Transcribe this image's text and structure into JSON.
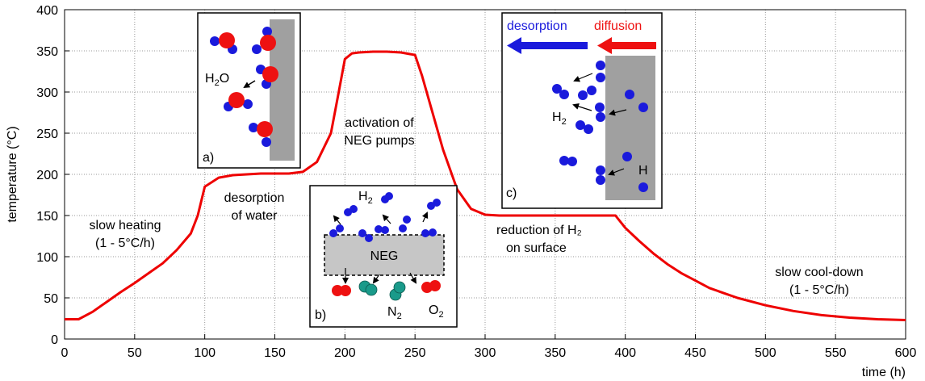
{
  "chart_data": {
    "type": "line",
    "xlabel": "time (h)",
    "ylabel": "temperature (°C)",
    "xlim": [
      0,
      600
    ],
    "ylim": [
      0,
      400
    ],
    "xticks": [
      0,
      50,
      100,
      150,
      200,
      250,
      300,
      350,
      400,
      450,
      500,
      550,
      600
    ],
    "yticks": [
      0,
      50,
      100,
      150,
      200,
      250,
      300,
      350,
      400
    ],
    "grid": true,
    "series": [
      {
        "color": "#ee0000",
        "x": [
          0,
          10,
          20,
          30,
          40,
          50,
          60,
          70,
          80,
          90,
          95,
          100,
          110,
          120,
          140,
          160,
          170,
          180,
          190,
          195,
          200,
          205,
          210,
          220,
          230,
          240,
          250,
          255,
          260,
          270,
          280,
          290,
          300,
          310,
          320,
          350,
          393,
          400,
          410,
          420,
          430,
          440,
          450,
          460,
          470,
          480,
          500,
          520,
          540,
          560,
          580,
          600
        ],
        "y": [
          24,
          24,
          33,
          45,
          57,
          68,
          80,
          92,
          108,
          128,
          150,
          185,
          196,
          199,
          201,
          201,
          203,
          215,
          250,
          295,
          340,
          347,
          348,
          349,
          349,
          348,
          345,
          320,
          290,
          230,
          182,
          158,
          151,
          150,
          150,
          150,
          150,
          135,
          119,
          104,
          91,
          80,
          71,
          62,
          56,
          50,
          41,
          34,
          29,
          26,
          24,
          23
        ]
      }
    ],
    "annotations": {
      "slow_heating": [
        "slow heating",
        "(1 - 5°C/h)"
      ],
      "desorption_water": [
        "desorption",
        "of water"
      ],
      "activation": [
        "activation of",
        "NEG pumps"
      ],
      "reduction": [
        "reduction of H₂",
        "on surface"
      ],
      "cooldown": [
        "slow cool-down",
        "(1 - 5°C/h)"
      ]
    },
    "insets": {
      "a": {
        "panel": "a)",
        "molecule": "H₂O"
      },
      "b": {
        "panel": "b)",
        "h2": "H₂",
        "getter": "NEG",
        "n2": "N₂",
        "o2": "O₂"
      },
      "c": {
        "panel": "c)",
        "desorption": "desorption",
        "diffusion": "diffusion",
        "h2": "H₂",
        "h": "H"
      }
    }
  },
  "colors": {
    "curve": "#ee0000",
    "molecule_blue": "#1a1adc",
    "molecule_red": "#ee1111",
    "molecule_teal": "#1a9a8a",
    "surface_gray": "#a0a0a0",
    "arrow_blue": "#1a1adc",
    "arrow_red": "#ee1111"
  }
}
